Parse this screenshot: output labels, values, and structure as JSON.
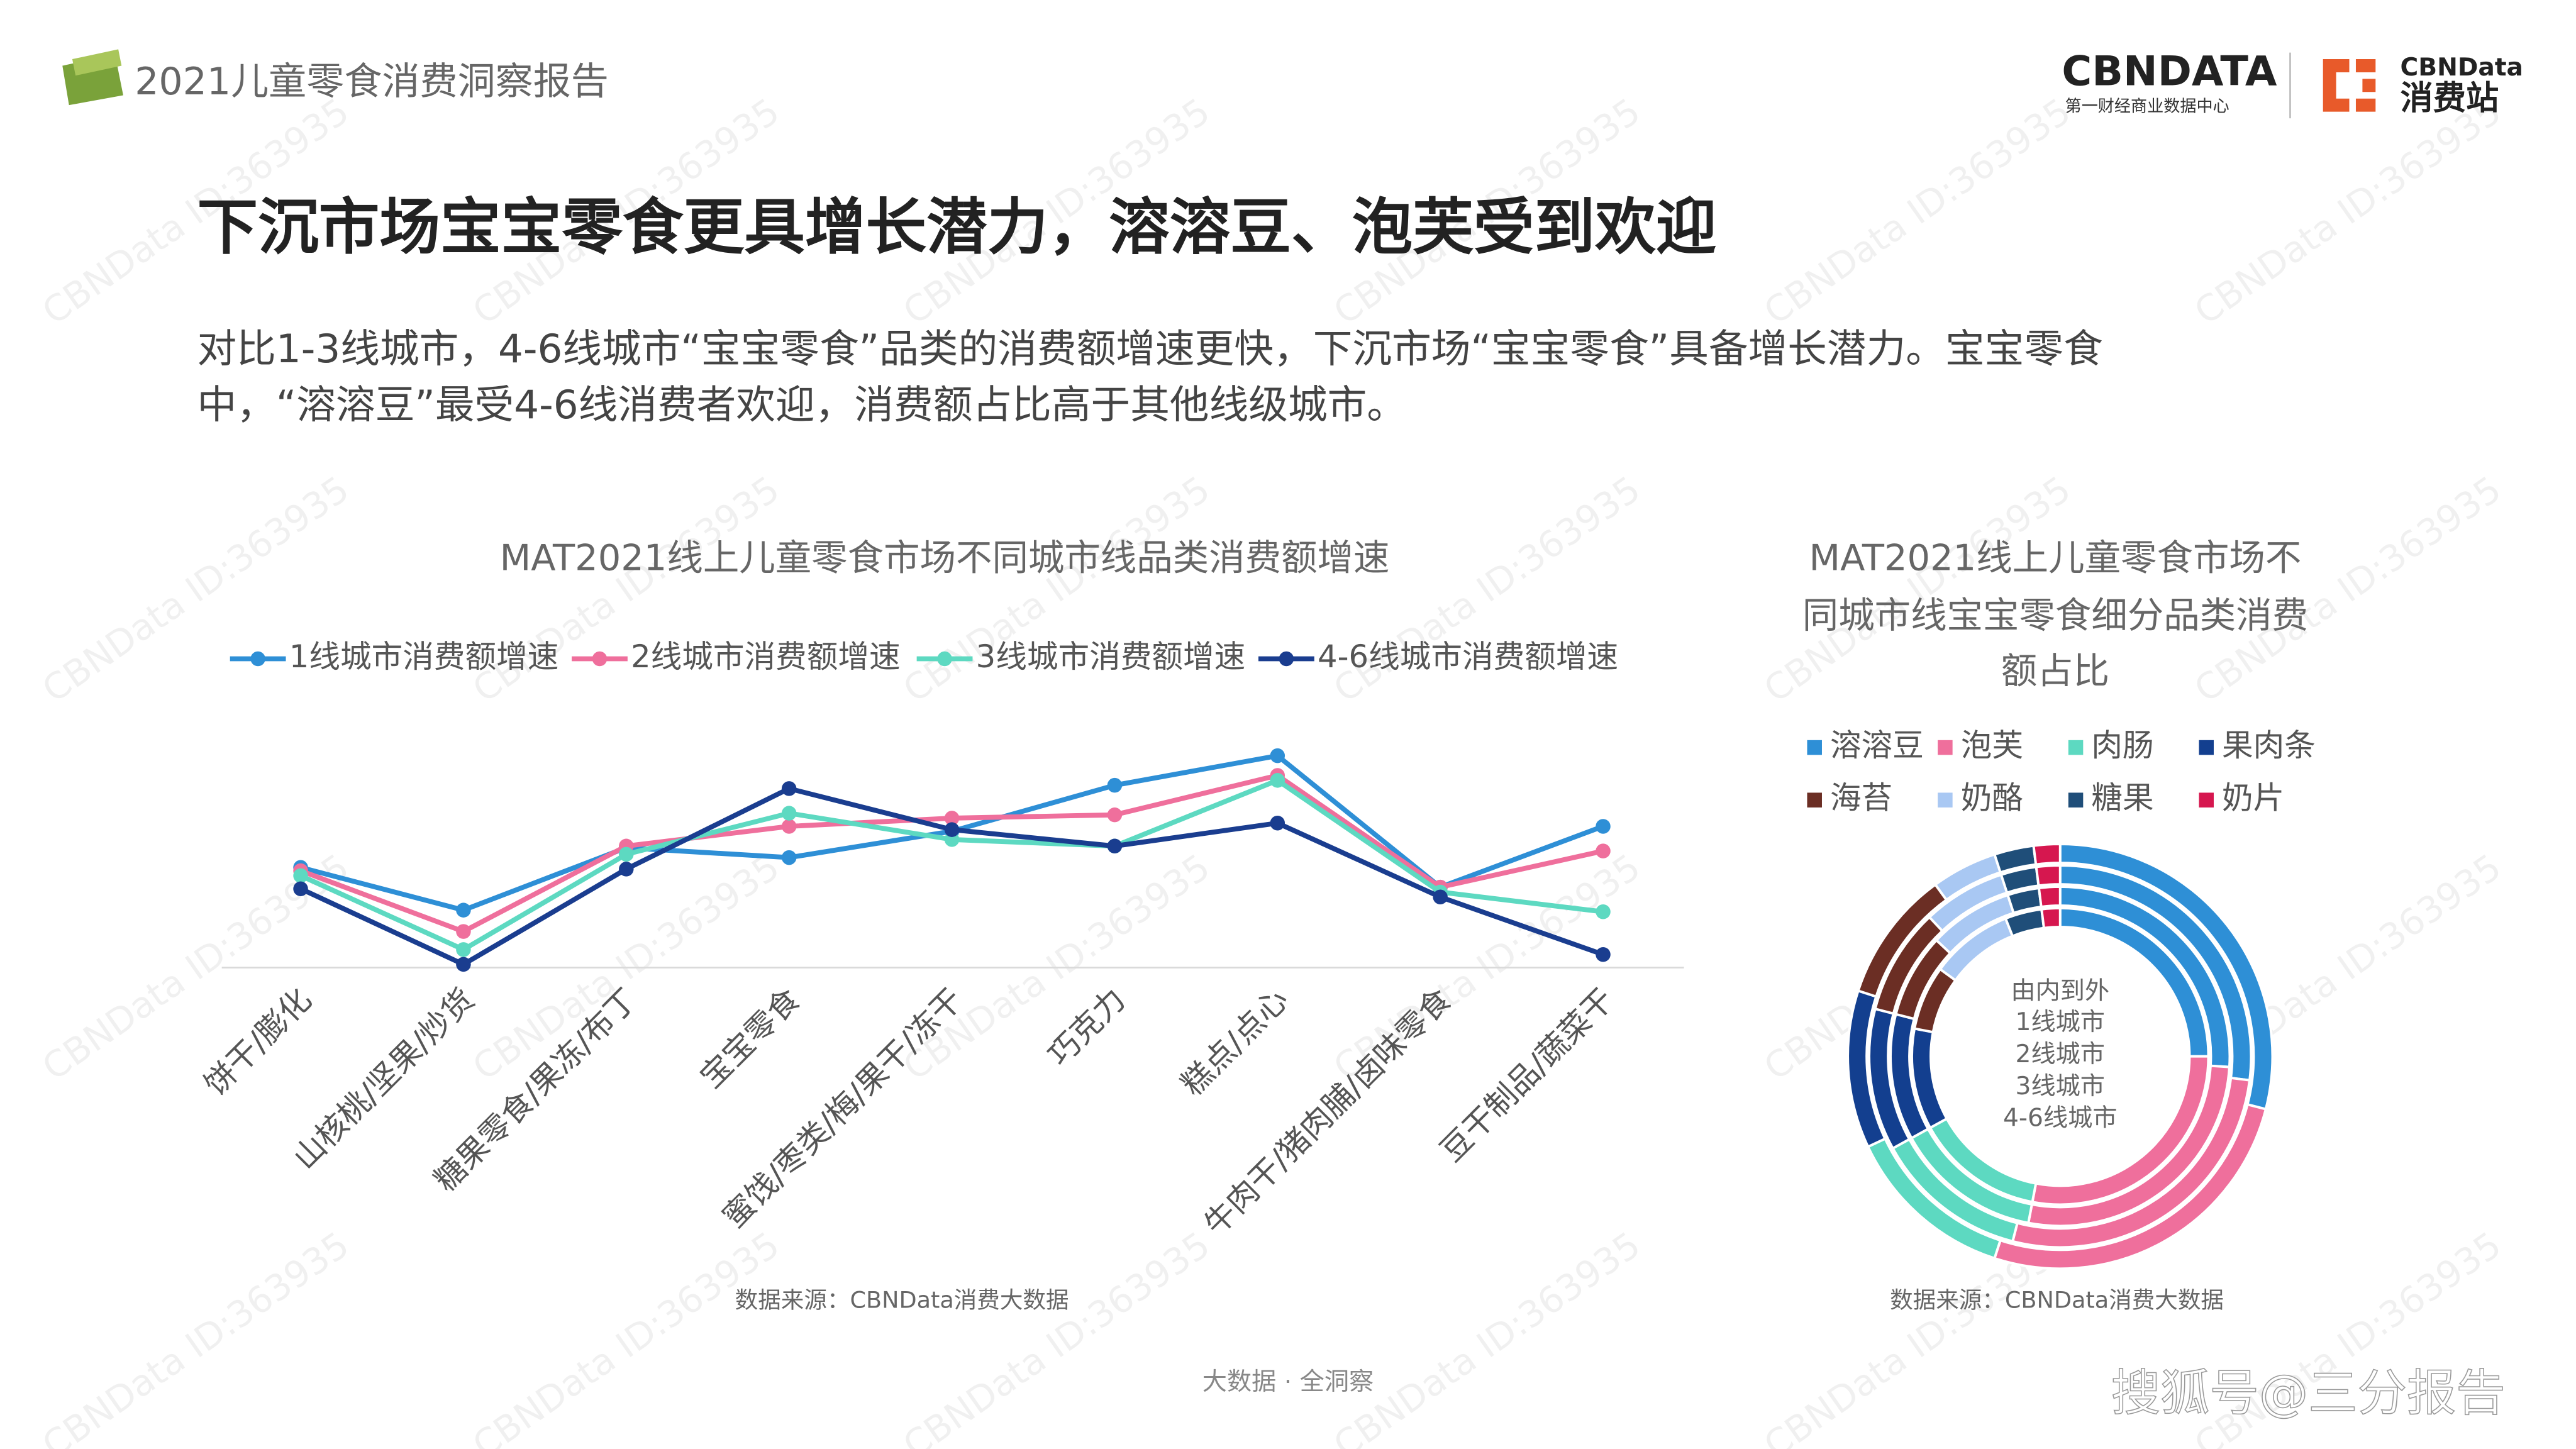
{
  "header": {
    "report_title": "2021儿童零食消费洞察报告",
    "logo_main": "CBNDATA",
    "logo_sub": "第一财经商业数据中心",
    "logo2_top": "CBNData",
    "logo2_bottom": "消费站"
  },
  "headline": "下沉市场宝宝零食更具增长潜力，溶溶豆、泡芙受到欢迎",
  "paragraph": [
    "对比1-3线城市，4-6线城市“宝宝零食”品类的消费额增速更快，下沉市场“宝宝零食”具备增长潜力。宝宝零食",
    "中，“溶溶豆”最受4-6线消费者欢迎，消费额占比高于其他线级城市。"
  ],
  "footer": "大数据 · 全洞察",
  "watermark": "CBNData ID:363935",
  "source_credit": "搜狐号@三分报告",
  "chart_data": [
    {
      "type": "line",
      "title": "MAT2021线上儿童零食市场不同城市线品类消费额增速",
      "categories": [
        "饼干/膨化",
        "山核桃/坚果/炒货",
        "糖果零食/果冻/布丁",
        "宝宝零食",
        "蜜饯/枣类/梅/果干/冻干",
        "巧克力",
        "糕点/点心",
        "牛肉干/猪肉脯/卤味零食",
        "豆干制品/蔬菜干"
      ],
      "series": [
        {
          "name": "1线城市消费额增速",
          "color": "#2e8fd6",
          "values": [
            61,
            35,
            73,
            67,
            83,
            111,
            129,
            49,
            86
          ]
        },
        {
          "name": "2线城市消费额增速",
          "color": "#ef6f9c",
          "values": [
            59,
            22,
            74,
            86,
            91,
            93,
            117,
            49,
            71
          ]
        },
        {
          "name": "3线城市消费额增速",
          "color": "#5dd9c1",
          "values": [
            56,
            11,
            69,
            94,
            78,
            74,
            114,
            46,
            34
          ]
        },
        {
          "name": "4-6线城市消费额增速",
          "color": "#1a3d8f",
          "values": [
            48,
            2,
            60,
            109,
            84,
            74,
            88,
            43,
            8
          ]
        }
      ],
      "ylim": [
        0,
        150
      ],
      "grid": false,
      "source": "数据来源：CBNData消费大数据"
    },
    {
      "type": "donut",
      "title": [
        "MAT2021线上儿童零食市场不",
        "同城市线宝宝零食细分品类消费",
        "额占比"
      ],
      "categories": [
        "溶溶豆",
        "泡芙",
        "肉肠",
        "果肉条",
        "海苔",
        "奶酪",
        "糖果",
        "奶片"
      ],
      "colors": [
        "#2e8fd6",
        "#ef6f9c",
        "#5dd9c1",
        "#133f8f",
        "#6b2e24",
        "#a9c8f3",
        "#1f4e79",
        "#d6174f"
      ],
      "center_label": "由内到外",
      "series": [
        {
          "name": "1线城市",
          "values": [
            25,
            28,
            14,
            11,
            7,
            9,
            4,
            2
          ]
        },
        {
          "name": "2线城市",
          "values": [
            26,
            27,
            14,
            12,
            8,
            8,
            3,
            2
          ]
        },
        {
          "name": "3线城市",
          "values": [
            27,
            27,
            13,
            12,
            9,
            7,
            3,
            2
          ]
        },
        {
          "name": "4-6线城市",
          "values": [
            29,
            26,
            13,
            12,
            10,
            5,
            3,
            2
          ]
        }
      ],
      "source": "数据来源：CBNData消费大数据"
    }
  ]
}
